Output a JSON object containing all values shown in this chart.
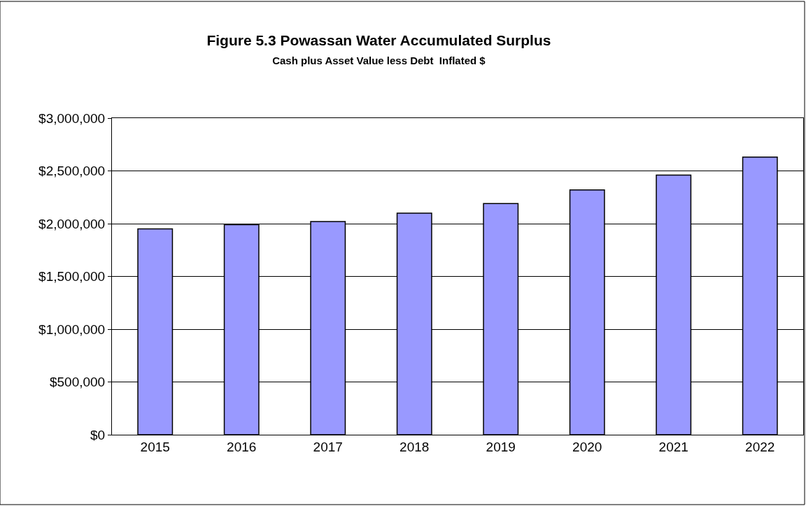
{
  "chart_data": {
    "type": "bar",
    "title": "Figure 5.3 Powassan Water Accumulated Surplus",
    "subtitle": "Cash plus Asset Value less Debt  Inflated $",
    "categories": [
      "2015",
      "2016",
      "2017",
      "2018",
      "2019",
      "2020",
      "2021",
      "2022"
    ],
    "values": [
      1950000,
      1990000,
      2020000,
      2100000,
      2190000,
      2320000,
      2460000,
      2630000
    ],
    "color": "#9999ff",
    "ylim": [
      0,
      3000000
    ],
    "yticks": [
      {
        "value": 0,
        "label": "$0"
      },
      {
        "value": 500000,
        "label": "$500,000"
      },
      {
        "value": 1000000,
        "label": "$1,000,000"
      },
      {
        "value": 1500000,
        "label": "$1,500,000"
      },
      {
        "value": 2000000,
        "label": "$2,000,000"
      },
      {
        "value": 2500000,
        "label": "$2,500,000"
      },
      {
        "value": 3000000,
        "label": "$3,000,000"
      }
    ],
    "grid": "y"
  }
}
